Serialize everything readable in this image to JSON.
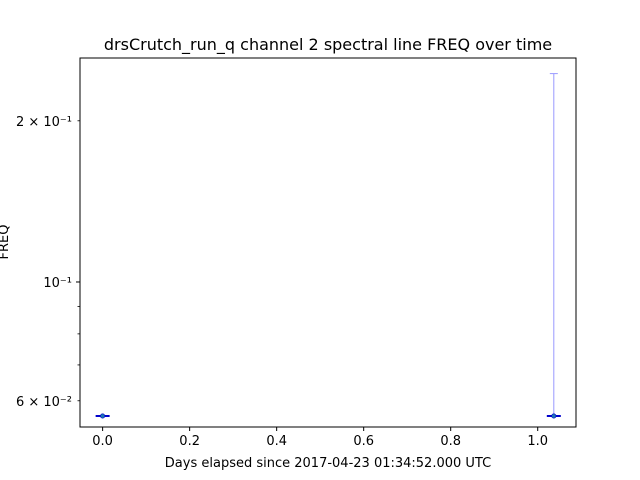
{
  "chart_data": {
    "type": "scatter",
    "title": "drsCrutch_run_q channel 2 spectral line FREQ over time",
    "xlabel": "Days elapsed since 2017-04-23 01:34:52.000 UTC",
    "ylabel": "FREQ",
    "xscale": "linear",
    "yscale": "log",
    "xlim": [
      -0.052,
      1.088
    ],
    "ylim": [
      0.0536,
      0.262
    ],
    "xticks": [
      0.0,
      0.2,
      0.4,
      0.6,
      0.8,
      1.0
    ],
    "xtick_labels": [
      "0.0",
      "0.2",
      "0.4",
      "0.6",
      "0.8",
      "1.0"
    ],
    "yticks_major": [
      0.1
    ],
    "yticks_major_labels": [
      "10⁻¹"
    ],
    "yticks_minor": [
      0.06,
      0.07,
      0.08,
      0.09,
      0.2
    ],
    "yticks_minor_labels": [
      "6 × 10⁻²",
      "",
      "",
      "",
      "2 × 10⁻¹"
    ],
    "grid": false,
    "series": [
      {
        "color": "#0000cc",
        "points": [
          {
            "x": 0.0,
            "y": 0.0562,
            "err_low": 0.0562,
            "err_high": 0.0562
          },
          {
            "x": 1.037,
            "y": 0.0562,
            "err_low": 0.0562,
            "err_high": 0.245
          }
        ]
      }
    ]
  }
}
